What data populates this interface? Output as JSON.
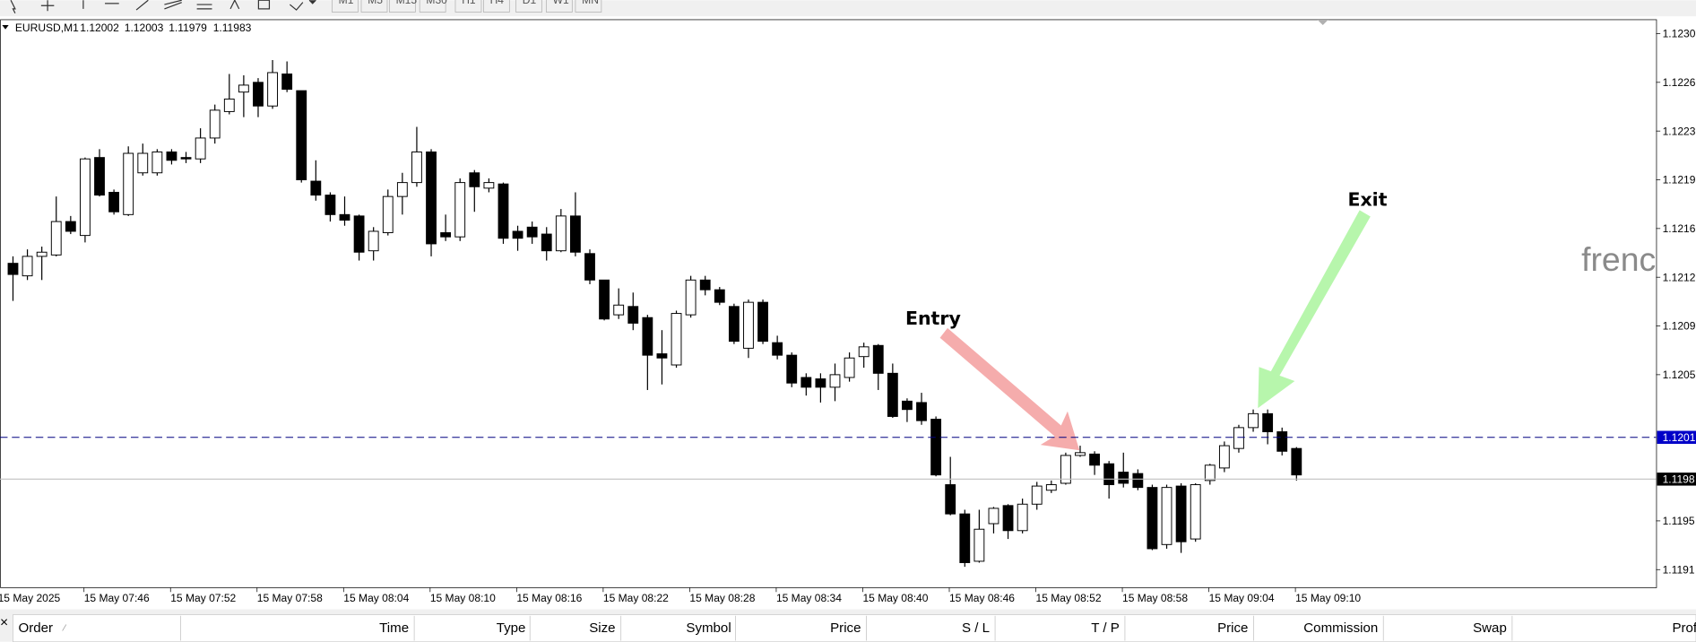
{
  "toolbar": {
    "timeframes": [
      "M1",
      "M5",
      "M15",
      "M30",
      "H1",
      "H4",
      "D1",
      "W1",
      "MN"
    ]
  },
  "chart_header": {
    "symbol": "EURUSD,M1",
    "ohlc": [
      1.12002,
      1.12003,
      1.11979,
      1.11983
    ]
  },
  "chart_data": {
    "type": "candlestick",
    "x_start_label": "15 May 2025",
    "categories": [
      null,
      null,
      null,
      null,
      null,
      "15 May 07:46",
      null,
      null,
      null,
      null,
      null,
      "15 May 07:52",
      null,
      null,
      null,
      null,
      null,
      "15 May 07:58",
      null,
      null,
      null,
      null,
      null,
      "15 May 08:04",
      null,
      null,
      null,
      null,
      null,
      "15 May 08:10",
      null,
      null,
      null,
      null,
      null,
      "15 May 08:16",
      null,
      null,
      null,
      null,
      null,
      "15 May 08:22",
      null,
      null,
      null,
      null,
      null,
      "15 May 08:28",
      null,
      null,
      null,
      null,
      null,
      "15 May 08:34",
      null,
      null,
      null,
      null,
      null,
      "15 May 08:40",
      null,
      null,
      null,
      null,
      null,
      "15 May 08:46",
      null,
      null,
      null,
      null,
      null,
      "15 May 08:52",
      null,
      null,
      null,
      null,
      null,
      "15 May 08:58",
      null,
      null,
      null,
      null,
      null,
      "15 May 09:04",
      null,
      null,
      null,
      null,
      null,
      "15 May 09:10"
    ],
    "open": [
      1.12135,
      1.12126,
      1.1214,
      1.12141,
      1.12165,
      1.12155,
      1.12211,
      1.12186,
      1.1217,
      1.122,
      1.122,
      1.12215,
      1.12211,
      1.1221,
      1.12225,
      1.12244,
      1.12258,
      1.12265,
      1.12248,
      1.12271,
      1.12259,
      1.12194,
      1.12184,
      1.1217,
      1.12169,
      1.12144,
      1.12157,
      1.12183,
      1.12193,
      1.12215,
      1.12157,
      1.12154,
      1.122,
      1.12189,
      1.12192,
      1.12158,
      1.12161,
      1.12156,
      1.12144,
      1.12169,
      1.12142,
      1.12123,
      1.12098,
      1.12104,
      1.12096,
      1.1207,
      1.12062,
      1.12098,
      1.12123,
      1.12116,
      1.12104,
      1.12074,
      1.12107,
      1.12078,
      1.12069,
      1.12053,
      1.12052,
      1.12046,
      1.12053,
      1.12068,
      1.12076,
      1.12056,
      1.12036,
      1.12035,
      1.12023,
      1.11976,
      1.11955,
      1.11921,
      1.11948,
      1.11961,
      1.11943,
      1.11962,
      1.11972,
      1.11977,
      1.11997,
      1.11998,
      1.11991,
      1.11985,
      1.11984,
      1.11974,
      1.11933,
      1.11975,
      1.11937,
      1.11979,
      1.11988,
      1.12002,
      1.12017,
      1.12027,
      1.12014,
      1.12002
    ],
    "high": [
      1.1214,
      1.12145,
      1.12147,
      1.12183,
      1.12169,
      1.12211,
      1.12217,
      1.12188,
      1.12219,
      1.12221,
      1.12217,
      1.12217,
      1.12215,
      1.12232,
      1.12249,
      1.12271,
      1.1227,
      1.12268,
      1.12281,
      1.1228,
      1.12259,
      1.12209,
      1.12186,
      1.12183,
      1.1217,
      1.12161,
      1.12188,
      1.122,
      1.12233,
      1.12217,
      1.1217,
      1.12196,
      1.12202,
      1.12196,
      1.12193,
      1.12162,
      1.12165,
      1.12161,
      1.12174,
      1.12186,
      1.12145,
      1.12123,
      1.12117,
      1.12114,
      1.12098,
      1.12087,
      1.12101,
      1.12126,
      1.12126,
      1.12118,
      1.12106,
      1.12109,
      1.12109,
      1.12083,
      1.12071,
      1.12056,
      1.12056,
      1.12063,
      1.12071,
      1.12078,
      1.12077,
      1.12063,
      1.12038,
      1.12042,
      1.12025,
      1.11996,
      1.11958,
      1.11958,
      1.1196,
      1.11962,
      1.11966,
      1.11978,
      1.11979,
      1.11999,
      1.12004,
      1.12,
      1.11993,
      1.11999,
      1.11987,
      1.11976,
      1.11976,
      1.11977,
      1.11977,
      1.11991,
      1.12007,
      1.12019,
      1.1203,
      1.1203,
      1.12017,
      1.12003
    ],
    "low": [
      1.12108,
      1.12123,
      1.12123,
      1.1214,
      1.12156,
      1.1215,
      1.12183,
      1.1217,
      1.12169,
      1.12198,
      1.12198,
      1.12206,
      1.12207,
      1.12207,
      1.12221,
      1.12242,
      1.1224,
      1.1224,
      1.12246,
      1.12258,
      1.12193,
      1.1218,
      1.12165,
      1.12162,
      1.12137,
      1.12137,
      1.12155,
      1.1217,
      1.1219,
      1.1214,
      1.12151,
      1.12151,
      1.12172,
      1.12186,
      1.12149,
      1.12144,
      1.12149,
      1.12137,
      1.12143,
      1.1214,
      1.1212,
      1.12094,
      1.12095,
      1.12087,
      1.12044,
      1.12048,
      1.1206,
      1.12096,
      1.12112,
      1.12105,
      1.12077,
      1.12067,
      1.12077,
      1.12066,
      1.12046,
      1.1204,
      1.12035,
      1.12036,
      1.1205,
      1.1206,
      1.12044,
      1.12024,
      1.12021,
      1.12019,
      1.11982,
      1.11954,
      1.11917,
      1.1192,
      1.11941,
      1.11937,
      1.11941,
      1.11958,
      1.1197,
      1.11976,
      1.11996,
      1.11983,
      1.11966,
      1.11974,
      1.11972,
      1.11929,
      1.1193,
      1.11927,
      1.11935,
      1.11976,
      1.11985,
      1.11999,
      1.12014,
      1.12005,
      1.11997,
      1.11979
    ],
    "close": [
      1.12127,
      1.1214,
      1.12143,
      1.12165,
      1.12158,
      1.1221,
      1.12184,
      1.12172,
      1.12214,
      1.12214,
      1.12215,
      1.12209,
      1.1221,
      1.12225,
      1.12245,
      1.12253,
      1.12263,
      1.12248,
      1.12272,
      1.1226,
      1.12195,
      1.12184,
      1.1217,
      1.12166,
      1.12143,
      1.12158,
      1.12183,
      1.12193,
      1.12215,
      1.12149,
      1.12154,
      1.12193,
      1.1219,
      1.12193,
      1.12153,
      1.12153,
      1.12154,
      1.12144,
      1.12169,
      1.12143,
      1.12123,
      1.12095,
      1.12105,
      1.12092,
      1.12069,
      1.12067,
      1.12099,
      1.12123,
      1.12116,
      1.12107,
      1.12079,
      1.12107,
      1.12079,
      1.12069,
      1.12049,
      1.12046,
      1.12046,
      1.12055,
      1.12067,
      1.12075,
      1.12056,
      1.12025,
      1.1203,
      1.12022,
      1.11983,
      1.11955,
      1.1192,
      1.11944,
      1.11959,
      1.11943,
      1.11962,
      1.11975,
      1.11976,
      1.11997,
      1.11999,
      1.1199,
      1.11976,
      1.11977,
      1.11974,
      1.1193,
      1.11974,
      1.11935,
      1.11976,
      1.1199,
      1.12004,
      1.12017,
      1.12027,
      1.12014,
      1.12,
      1.11983
    ],
    "bull_color": "#ffffff",
    "bear_color": "#000000",
    "ylim": [
      1.11902,
      1.1231
    ],
    "yticks": [
      {
        "value": 1.123,
        "label": "1.1230"
      },
      {
        "value": 1.12265,
        "label": "1.1226"
      },
      {
        "value": 1.1223,
        "label": "1.1223"
      },
      {
        "value": 1.12195,
        "label": "1.1219"
      },
      {
        "value": 1.1216,
        "label": "1.1216"
      },
      {
        "value": 1.12125,
        "label": "1.1212"
      },
      {
        "value": 1.1209,
        "label": "1.1209"
      },
      {
        "value": 1.12055,
        "label": "1.1205"
      },
      {
        "value": 1.1195,
        "label": "1.1195"
      },
      {
        "value": 1.11915,
        "label": "1.1191"
      }
    ],
    "ask": 1.1201,
    "ask_color": "#0000c8",
    "bid": 1.1198,
    "bid_color": "#c0c0c0",
    "annotations": [
      {
        "text": "Entry",
        "color": "#f4a3a3"
      },
      {
        "text": "Exit",
        "color": "#b3f5a8"
      }
    ],
    "watermark": "frenc"
  },
  "terminal": {
    "columns": [
      "Order",
      "Time",
      "Type",
      "Size",
      "Symbol",
      "Price",
      "S / L",
      "T / P",
      "Price",
      "Commission",
      "Swap",
      "Prof"
    ]
  }
}
